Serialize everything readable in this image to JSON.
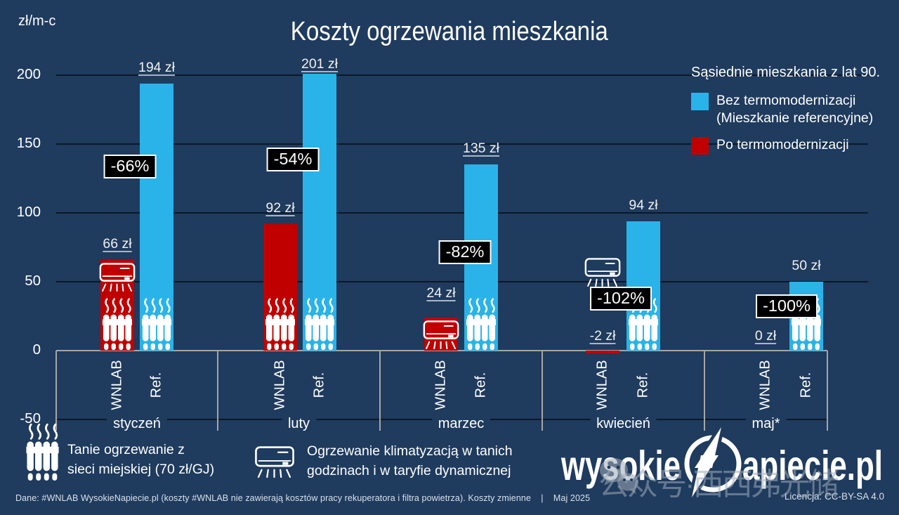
{
  "title": "Koszty ogrzewania mieszkania",
  "y_axis_unit": "zł/m-c",
  "legend": {
    "heading": "Sąsiednie mieszkania z lat 90.",
    "items": [
      {
        "line1": "Bez termomodernizacji",
        "line2": "(Mieszkanie referencyjne)",
        "color": "#29b3e9"
      },
      {
        "line1": "Po termomodernizacji",
        "line2": "",
        "color": "#c00000"
      }
    ]
  },
  "chart_data": {
    "type": "bar",
    "categories": [
      "styczeń",
      "luty",
      "marzec",
      "kwiecień",
      "maj*"
    ],
    "series": [
      {
        "name": "WNLAB",
        "color": "#c00000",
        "values": [
          66,
          92,
          24,
          -2,
          0
        ],
        "value_labels": [
          "66 zł",
          "92 zł",
          "24 zł",
          "-2 zł",
          "0 zł"
        ],
        "underlined": [
          true,
          true,
          true,
          true,
          true
        ],
        "icons": [
          [
            "ac",
            "radiator"
          ],
          [
            "radiator"
          ],
          [
            "ac"
          ],
          [
            "ac-float"
          ],
          []
        ]
      },
      {
        "name": "Ref.",
        "color": "#29b3e9",
        "values": [
          194,
          201,
          135,
          94,
          50
        ],
        "value_labels": [
          "194 zł",
          "201 zł",
          "135 zł",
          "94 zł",
          "50 zł"
        ],
        "underlined": [
          true,
          true,
          true,
          false,
          false
        ],
        "icons": [
          [
            "radiator"
          ],
          [
            "radiator"
          ],
          [
            "radiator"
          ],
          [
            "radiator"
          ],
          [
            "radiator"
          ]
        ]
      }
    ],
    "change_labels": [
      "-66%",
      "-54%",
      "-82%",
      "-102%",
      "-100%"
    ],
    "y_ticks": [
      200,
      150,
      100,
      50,
      0,
      -50
    ],
    "ylim": [
      -50,
      225
    ],
    "grid": true,
    "legend_position": "top-right"
  },
  "icon_legend": [
    {
      "icon": "radiator",
      "line1": "Tanie ogrzewanie z",
      "line2": "sieci miejskiej (70 zł/GJ)"
    },
    {
      "icon": "air-conditioner",
      "line1": "Ogrzewanie klimatyzacją w tanich",
      "line2": "godzinach i w taryfie dynamicznej"
    }
  ],
  "footer": {
    "left": "Dane: #WNLAB WysokieNapiecie.pl (koszty #WNLAB nie zawierają kosztów pracy rekuperatora i filtra powietrza). Koszty zmienne    |    Maj 2025",
    "right": "Licencja: CC-BY-SA 4.0"
  },
  "logo": {
    "part1": "wysokie",
    "part2": "apiecie.pl"
  },
  "watermark": "公众号·西西弗光储",
  "colors": {
    "background": "#1f3b5e",
    "bar_blue": "#29b3e9",
    "bar_red": "#c00000",
    "grid_dark": "#0a1929",
    "axis_grey": "#a6a6a6",
    "badge_bg": "#000000",
    "text": "#ffffff"
  }
}
